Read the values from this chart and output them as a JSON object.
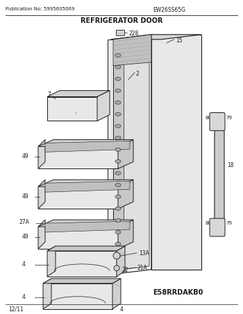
{
  "bg_color": "#ffffff",
  "title": "REFRIGERATOR DOOR",
  "pub_no": "Publication No: 5995605069",
  "model": "EW26SS65G",
  "diagram_code": "E58RRDAKB0",
  "footer_left": "12/11",
  "footer_center": "4",
  "lc": "#1a1a1a",
  "gray1": "#c8c8c8",
  "gray2": "#e0e0e0",
  "gray3": "#f0f0f0",
  "gray4": "#d0d0d0",
  "gray5": "#b0b0b0"
}
